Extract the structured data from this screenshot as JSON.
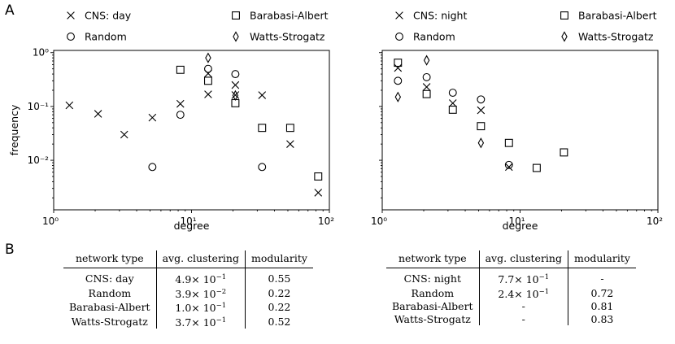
{
  "panels": {
    "a": "A",
    "b": "B"
  },
  "chart_data": [
    {
      "type": "scatter",
      "xscale": "log",
      "yscale": "log",
      "xlim": [
        1,
        100
      ],
      "ylim": [
        0.0012,
        1.1
      ],
      "xlabel": "degree",
      "ylabel": "frequency",
      "xticks": [
        "10⁰",
        "10¹",
        "10²"
      ],
      "yticks": [
        "10⁰",
        "10⁻¹",
        "10⁻²"
      ],
      "legend": [
        {
          "name": "CNS: day",
          "marker": "x"
        },
        {
          "name": "Barabasi-Albert",
          "marker": "square"
        },
        {
          "name": "Random",
          "marker": "circle"
        },
        {
          "name": "Watts-Strogatz",
          "marker": "diamond"
        }
      ],
      "series": [
        {
          "name": "CNS: day",
          "marker": "x",
          "points": [
            [
              1.3,
              0.105
            ],
            [
              2.1,
              0.073
            ],
            [
              3.25,
              0.03
            ],
            [
              5.2,
              0.062
            ],
            [
              8.3,
              0.112
            ],
            [
              13.2,
              0.168
            ],
            [
              13.2,
              0.41
            ],
            [
              20.8,
              0.25
            ],
            [
              20.8,
              0.163
            ],
            [
              32.5,
              0.162
            ],
            [
              52,
              0.02
            ],
            [
              83,
              0.0025
            ]
          ]
        },
        {
          "name": "Random",
          "marker": "circle",
          "points": [
            [
              5.2,
              0.0075
            ],
            [
              8.3,
              0.07
            ],
            [
              13.2,
              0.5
            ],
            [
              20.8,
              0.4
            ],
            [
              32.5,
              0.0075
            ]
          ]
        },
        {
          "name": "Barabasi-Albert",
          "marker": "square",
          "points": [
            [
              8.3,
              0.48
            ],
            [
              13.2,
              0.3
            ],
            [
              20.8,
              0.115
            ],
            [
              32.5,
              0.04
            ],
            [
              52,
              0.04
            ],
            [
              83,
              0.005
            ]
          ]
        },
        {
          "name": "Watts-Strogatz",
          "marker": "diamond",
          "points": [
            [
              13.2,
              0.8
            ],
            [
              20.8,
              0.16
            ]
          ]
        }
      ]
    },
    {
      "type": "scatter",
      "xscale": "log",
      "yscale": "log",
      "xlim": [
        1,
        100
      ],
      "ylim": [
        0.0012,
        1.1
      ],
      "xlabel": "degree",
      "xticks": [
        "10⁰",
        "10¹",
        "10²"
      ],
      "legend": [
        {
          "name": "CNS: night",
          "marker": "x"
        },
        {
          "name": "Barabasi-Albert",
          "marker": "square"
        },
        {
          "name": "Random",
          "marker": "circle"
        },
        {
          "name": "Watts-Strogatz",
          "marker": "diamond"
        }
      ],
      "series": [
        {
          "name": "CNS: night",
          "marker": "x",
          "points": [
            [
              1.3,
              0.52
            ],
            [
              2.1,
              0.23
            ],
            [
              3.25,
              0.115
            ],
            [
              5.2,
              0.085
            ],
            [
              8.3,
              0.0075
            ]
          ]
        },
        {
          "name": "Random",
          "marker": "circle",
          "points": [
            [
              1.3,
              0.3
            ],
            [
              2.1,
              0.35
            ],
            [
              3.25,
              0.18
            ],
            [
              5.2,
              0.135
            ],
            [
              8.3,
              0.0082
            ]
          ]
        },
        {
          "name": "Barabasi-Albert",
          "marker": "square",
          "points": [
            [
              1.3,
              0.65
            ],
            [
              2.1,
              0.17
            ],
            [
              3.25,
              0.087
            ],
            [
              5.2,
              0.043
            ],
            [
              8.3,
              0.021
            ],
            [
              13.2,
              0.0072
            ],
            [
              20.8,
              0.014
            ]
          ]
        },
        {
          "name": "Watts-Strogatz",
          "marker": "diamond",
          "points": [
            [
              1.3,
              0.15
            ],
            [
              2.1,
              0.72
            ],
            [
              5.2,
              0.021
            ]
          ]
        }
      ]
    }
  ],
  "tables": [
    {
      "headers": [
        "network type",
        "avg. clustering",
        "modularity"
      ],
      "rows": [
        {
          "type": "CNS: day",
          "mant": "4.9",
          "exp": "−1",
          "mod": "0.55"
        },
        {
          "type": "Random",
          "mant": "3.9",
          "exp": "−2",
          "mod": "0.22"
        },
        {
          "type": "Barabasi-Albert",
          "mant": "1.0",
          "exp": "−1",
          "mod": "0.22"
        },
        {
          "type": "Watts-Strogatz",
          "mant": "3.7",
          "exp": "−1",
          "mod": "0.52"
        }
      ]
    },
    {
      "headers": [
        "network type",
        "avg. clustering",
        "modularity"
      ],
      "rows": [
        {
          "type": "CNS: night",
          "mant": "7.7",
          "exp": "−1",
          "mod": "-"
        },
        {
          "type": "Random",
          "mant": "2.4",
          "exp": "−1",
          "mod": "0.72"
        },
        {
          "type": "Barabasi-Albert",
          "plain": "-",
          "mod": "0.81"
        },
        {
          "type": "Watts-Strogatz",
          "plain": "-",
          "mod": "0.83"
        }
      ]
    }
  ]
}
